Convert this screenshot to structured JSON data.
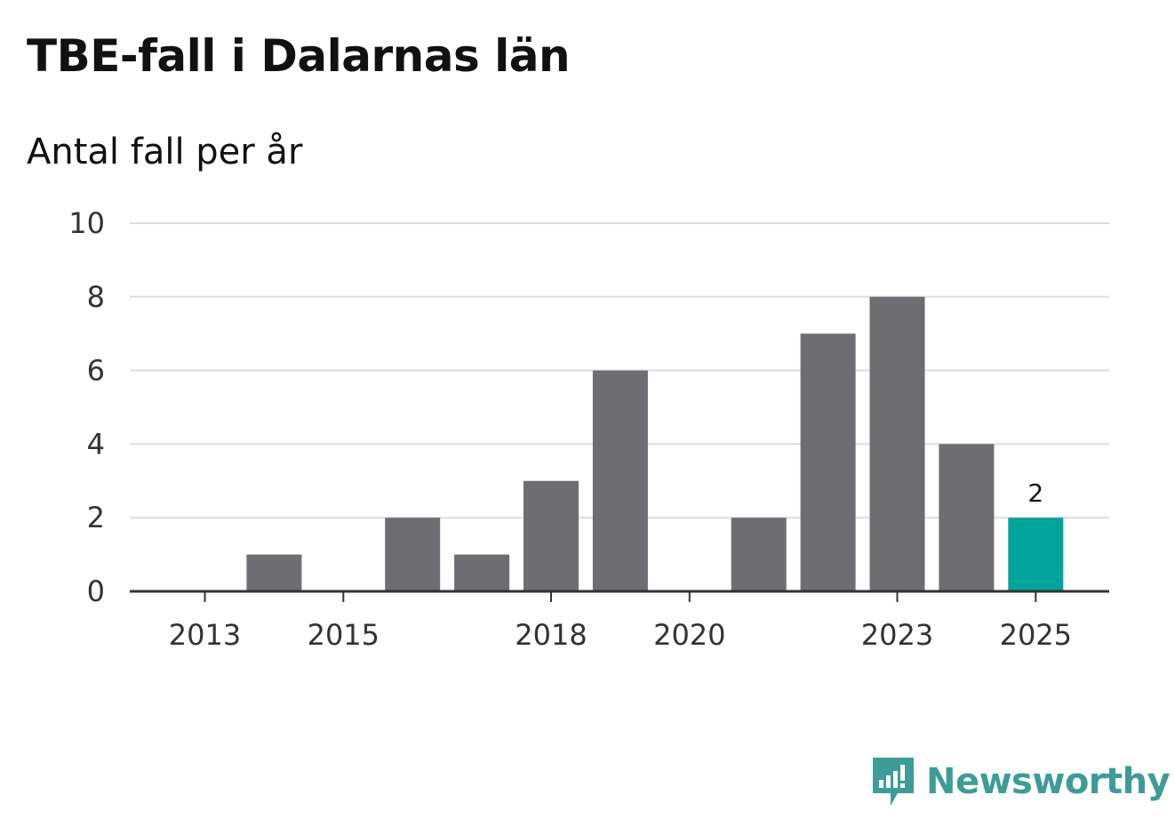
{
  "title": "TBE-fall i Dalarnas län",
  "subtitle": "Antal fall per år",
  "brand": {
    "name": "Newsworthy",
    "icon": "newsworthy-logo-icon",
    "color": "#3d9c97"
  },
  "colors": {
    "bar": "#6e6d72",
    "highlight": "#00a49a",
    "grid": "#dddddd",
    "axis": "#333333"
  },
  "chart_data": {
    "type": "bar",
    "categories": [
      "2013",
      "2014",
      "2015",
      "2016",
      "2017",
      "2018",
      "2019",
      "2020",
      "2021",
      "2022",
      "2023",
      "2024",
      "2025"
    ],
    "values": [
      0,
      1,
      0,
      2,
      1,
      3,
      6,
      0,
      2,
      7,
      8,
      4,
      2
    ],
    "x_tick_labels": [
      "2013",
      "2015",
      "2018",
      "2020",
      "2023",
      "2025"
    ],
    "y_ticks": [
      0,
      2,
      4,
      6,
      8,
      10
    ],
    "ylim": [
      0,
      10
    ],
    "highlight_category": "2025",
    "data_labels": [
      {
        "category": "2025",
        "text": "2"
      }
    ],
    "grid": true,
    "legend": "none",
    "title": "TBE-fall i Dalarnas län",
    "subtitle": "Antal fall per år",
    "xlabel": "",
    "ylabel": ""
  }
}
